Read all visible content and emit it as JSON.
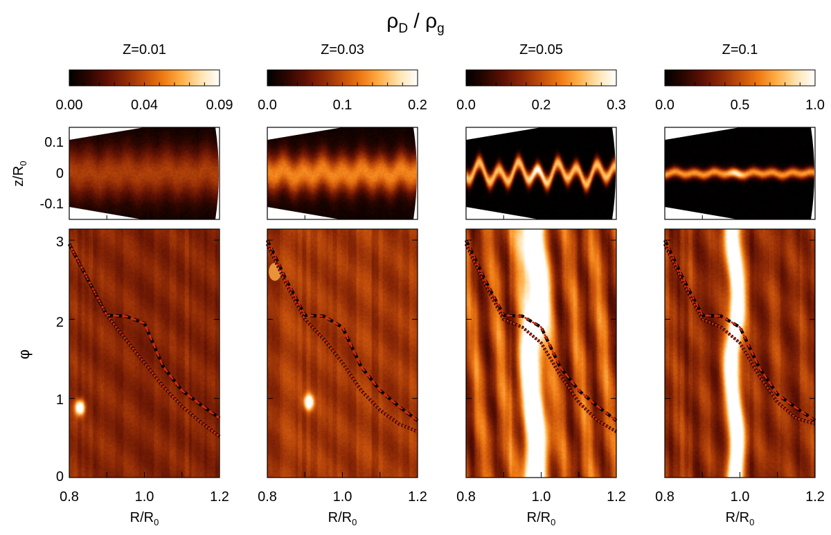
{
  "figure": {
    "title_main": "ρ",
    "title_sub1": "D",
    "title_sep": " / ρ",
    "title_sub2": "g"
  },
  "colormap": [
    "#000000",
    "#2a0600",
    "#5e1104",
    "#8e2a06",
    "#c24e0c",
    "#ee7a14",
    "#ffb04a",
    "#ffe3b0",
    "#ffffff"
  ],
  "labels": {
    "z_axis_main": "z/R",
    "z_axis_sub": "0",
    "phi_axis": "φ",
    "r_axis_main": "R/R",
    "r_axis_sub": "0",
    "z_ticks": [
      "0.1",
      "0",
      "-0.1"
    ],
    "phi_ticks": [
      "3",
      "2",
      "1",
      "0"
    ],
    "r_ticks": [
      "0.8",
      "1.0",
      "1.2"
    ]
  },
  "chart_data": [
    {
      "type": "heatmap",
      "title": "Z=0.01",
      "colorbar": {
        "range": [
          0,
          0.09
        ],
        "ticks": [
          "0.00",
          "0.04",
          "0.09"
        ]
      },
      "x_range": [
        0.8,
        1.2
      ],
      "z_range": [
        -0.15,
        0.15
      ],
      "phi_range": [
        0,
        3.14
      ],
      "meridional": {
        "background_level": 0.18,
        "layer_level": 0.4,
        "layer_halfwidth": 0.06,
        "wave_amp": 0.008
      },
      "midplane": {
        "background_level": 0.35,
        "band": null,
        "clump": {
          "r": 0.827,
          "phi": 0.88,
          "level": 1.0
        }
      },
      "curves": {
        "dashed": [
          [
            0.8,
            2.95
          ],
          [
            0.85,
            2.5
          ],
          [
            0.9,
            2.05
          ],
          [
            0.95,
            2.04
          ],
          [
            1.0,
            1.95
          ],
          [
            1.05,
            1.4
          ],
          [
            1.1,
            1.1
          ],
          [
            1.15,
            0.92
          ],
          [
            1.2,
            0.75
          ]
        ],
        "dotted": [
          [
            0.8,
            2.95
          ],
          [
            0.85,
            2.5
          ],
          [
            0.9,
            2.05
          ],
          [
            0.95,
            1.75
          ],
          [
            1.0,
            1.45
          ],
          [
            1.05,
            1.15
          ],
          [
            1.1,
            0.9
          ],
          [
            1.15,
            0.7
          ],
          [
            1.2,
            0.52
          ]
        ]
      }
    },
    {
      "type": "heatmap",
      "title": "Z=0.03",
      "colorbar": {
        "range": [
          0,
          0.2
        ],
        "ticks": [
          "0.0",
          "0.1",
          "0.2"
        ]
      },
      "x_range": [
        0.8,
        1.2
      ],
      "z_range": [
        -0.15,
        0.15
      ],
      "phi_range": [
        0,
        3.14
      ],
      "meridional": {
        "background_level": 0.2,
        "layer_level": 0.6,
        "layer_halfwidth": 0.045,
        "wave_amp": 0.01
      },
      "midplane": {
        "background_level": 0.42,
        "band": null,
        "clump": {
          "r": 0.91,
          "phi": 0.95,
          "level": 0.95
        }
      },
      "curves": {
        "dashed": [
          [
            0.8,
            3.0
          ],
          [
            0.85,
            2.5
          ],
          [
            0.9,
            2.05
          ],
          [
            0.95,
            2.04
          ],
          [
            1.0,
            1.9
          ],
          [
            1.05,
            1.4
          ],
          [
            1.1,
            1.1
          ],
          [
            1.15,
            0.9
          ],
          [
            1.2,
            0.72
          ]
        ],
        "dotted": [
          [
            0.8,
            2.95
          ],
          [
            0.85,
            2.45
          ],
          [
            0.9,
            2.0
          ],
          [
            0.95,
            1.75
          ],
          [
            1.0,
            1.45
          ],
          [
            1.05,
            1.1
          ],
          [
            1.1,
            0.85
          ],
          [
            1.15,
            0.68
          ],
          [
            1.2,
            0.58
          ]
        ]
      }
    },
    {
      "type": "heatmap",
      "title": "Z=0.05",
      "colorbar": {
        "range": [
          0,
          0.3
        ],
        "ticks": [
          "0.0",
          "0.2",
          "0.3"
        ]
      },
      "x_range": [
        0.8,
        1.2
      ],
      "z_range": [
        -0.15,
        0.15
      ],
      "phi_range": [
        0,
        3.14
      ],
      "meridional": {
        "background_level": 0.0,
        "layer_level": 0.8,
        "layer_halfwidth": 0.018,
        "wave_amp": 0.025
      },
      "midplane": {
        "background_level": 0.45,
        "band": {
          "r": 0.98,
          "halfwidth": 0.03,
          "level": 0.95
        },
        "clump": null
      },
      "curves": {
        "dashed": [
          [
            0.8,
            3.0
          ],
          [
            0.85,
            2.5
          ],
          [
            0.9,
            2.05
          ],
          [
            0.95,
            2.04
          ],
          [
            1.0,
            1.9
          ],
          [
            1.05,
            1.4
          ],
          [
            1.1,
            1.1
          ],
          [
            1.15,
            0.9
          ],
          [
            1.2,
            0.72
          ]
        ],
        "dotted": [
          [
            0.8,
            2.95
          ],
          [
            0.85,
            2.45
          ],
          [
            0.9,
            2.0
          ],
          [
            0.95,
            1.9
          ],
          [
            1.0,
            1.7
          ],
          [
            1.05,
            1.3
          ],
          [
            1.1,
            0.95
          ],
          [
            1.15,
            0.72
          ],
          [
            1.2,
            0.58
          ]
        ]
      }
    },
    {
      "type": "heatmap",
      "title": "Z=0.1",
      "colorbar": {
        "range": [
          0,
          1.0
        ],
        "ticks": [
          "0.0",
          "0.5",
          "1.0"
        ]
      },
      "x_range": [
        0.8,
        1.2
      ],
      "z_range": [
        -0.15,
        0.15
      ],
      "phi_range": [
        0,
        3.14
      ],
      "meridional": {
        "background_level": 0.0,
        "layer_level": 0.7,
        "layer_halfwidth": 0.012,
        "wave_amp": 0.004
      },
      "midplane": {
        "background_level": 0.38,
        "band": {
          "r": 0.985,
          "halfwidth": 0.02,
          "level": 1.0
        },
        "clump": null
      },
      "curves": {
        "dashed": [
          [
            0.8,
            3.0
          ],
          [
            0.85,
            2.5
          ],
          [
            0.9,
            2.05
          ],
          [
            0.95,
            2.04
          ],
          [
            1.0,
            1.9
          ],
          [
            1.05,
            1.4
          ],
          [
            1.1,
            1.05
          ],
          [
            1.15,
            0.88
          ],
          [
            1.2,
            0.72
          ]
        ],
        "dotted": [
          [
            0.8,
            2.95
          ],
          [
            0.85,
            2.45
          ],
          [
            0.9,
            2.0
          ],
          [
            0.95,
            1.9
          ],
          [
            1.0,
            1.7
          ],
          [
            1.05,
            1.3
          ],
          [
            1.1,
            0.95
          ],
          [
            1.15,
            0.75
          ],
          [
            1.2,
            0.68
          ]
        ]
      }
    }
  ]
}
